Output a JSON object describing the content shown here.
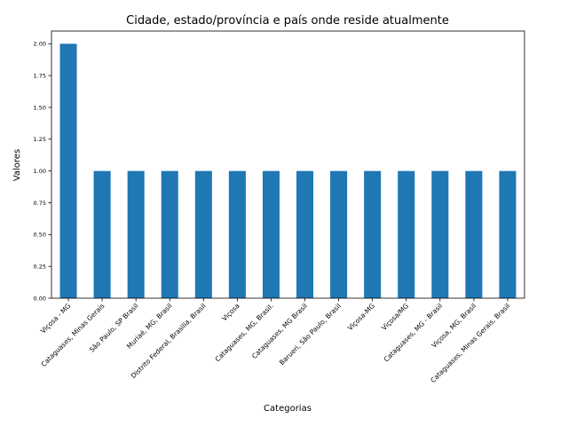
{
  "chart_data": {
    "type": "bar",
    "title": "Cidade, estado/província e país onde reside atualmente",
    "xlabel": "Categorias",
    "ylabel": "Valores",
    "ylim": [
      0,
      2.1
    ],
    "yticks": [
      "0.00",
      "0.25",
      "0.50",
      "0.75",
      "1.00",
      "1.25",
      "1.50",
      "1.75",
      "2.00"
    ],
    "grid": false,
    "bar_color": "#1f77b4",
    "categories": [
      "Viçosa - MG",
      "Cataguases, Minas Gerais",
      "São Paulo, SP Brasil",
      "Muriaé, MG, Brasil",
      "Distrito Federal, Brasilia, Brasil",
      "Viçosa",
      "Cataguases, MG, Brasil.",
      "Cataguases, MG Brasil",
      "Barueri, São Paulo, Brasil",
      "Viçosa-MG",
      "Viçosa/MG",
      "Cataguases, MG - Brasil",
      "Viçosa, MG, Brasil",
      "Cataguases, Minas Gerais, Brasil"
    ],
    "values": [
      2,
      1,
      1,
      1,
      1,
      1,
      1,
      1,
      1,
      1,
      1,
      1,
      1,
      1
    ]
  }
}
